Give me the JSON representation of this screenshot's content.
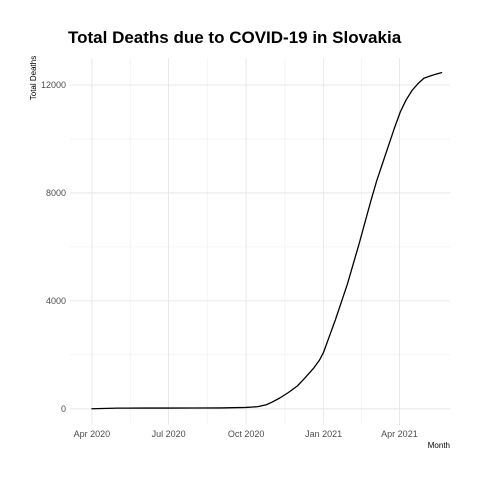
{
  "chart_data": {
    "type": "line",
    "title": "Total Deaths due to COVID-19 in Slovakia",
    "xlabel": "Month",
    "ylabel": "Total Deaths",
    "x_ticks": [
      "Apr 2020",
      "Jul 2020",
      "Oct 2020",
      "Jan 2021",
      "Apr 2021"
    ],
    "y_ticks": [
      "0",
      "4000",
      "8000",
      "12000"
    ],
    "xlim": [
      "2020-03-06",
      "2021-05-31"
    ],
    "ylim": [
      -600,
      13000
    ],
    "grid": true,
    "series": [
      {
        "x": [
          "2020-04-01",
          "2020-05-01",
          "2020-06-01",
          "2020-07-01",
          "2020-08-01",
          "2020-09-01",
          "2020-10-01",
          "2020-10-15",
          "2020-10-25",
          "2020-11-01",
          "2020-11-10",
          "2020-11-20",
          "2020-12-01",
          "2020-12-10",
          "2020-12-20",
          "2020-12-27",
          "2021-01-01",
          "2021-01-08",
          "2021-01-15",
          "2021-01-22",
          "2021-01-29",
          "2021-02-05",
          "2021-02-12",
          "2021-02-19",
          "2021-02-26",
          "2021-03-05",
          "2021-03-12",
          "2021-03-19",
          "2021-03-26",
          "2021-04-02",
          "2021-04-09",
          "2021-04-16",
          "2021-04-23",
          "2021-04-30",
          "2021-05-07",
          "2021-05-14",
          "2021-05-21"
        ],
        "y": [
          2,
          25,
          28,
          28,
          29,
          33,
          50,
          80,
          150,
          250,
          400,
          600,
          850,
          1150,
          1500,
          1800,
          2100,
          2700,
          3300,
          3950,
          4600,
          5350,
          6100,
          6900,
          7700,
          8450,
          9100,
          9750,
          10400,
          11000,
          11450,
          11800,
          12050,
          12250,
          12330,
          12400,
          12460
        ]
      }
    ]
  }
}
